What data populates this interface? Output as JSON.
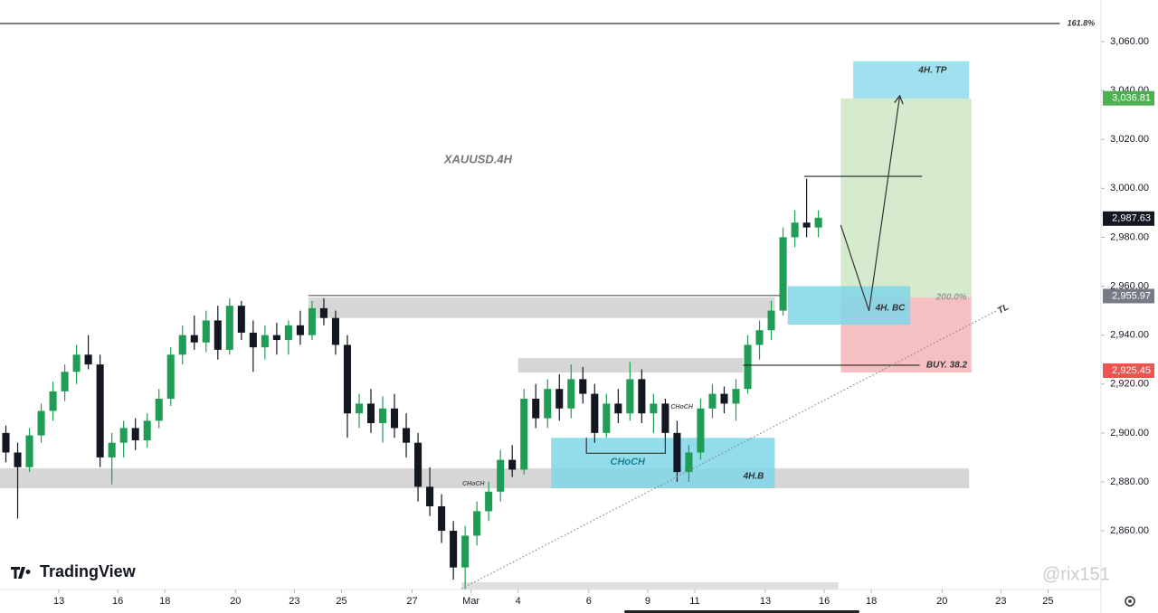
{
  "chart_data": {
    "type": "candlestick",
    "up_color": "#1f9d55",
    "down_color": "#131722",
    "grid": false,
    "xlim": [
      -0.5,
      93
    ],
    "xticks": [
      {
        "value": 4.5,
        "label": "13"
      },
      {
        "value": 9.5,
        "label": "16"
      },
      {
        "value": 13.5,
        "label": "18"
      },
      {
        "value": 19.5,
        "label": "20"
      },
      {
        "value": 24.5,
        "label": "23"
      },
      {
        "value": 28.5,
        "label": "25"
      },
      {
        "value": 34.5,
        "label": "27"
      },
      {
        "value": 39.5,
        "label": "Mar"
      },
      {
        "value": 43.5,
        "label": "4"
      },
      {
        "value": 49.5,
        "label": "6"
      },
      {
        "value": 54.5,
        "label": "9"
      },
      {
        "value": 58.5,
        "label": "11"
      },
      {
        "value": 64.5,
        "label": "13"
      },
      {
        "value": 69.5,
        "label": "16"
      },
      {
        "value": 73.5,
        "label": "18"
      },
      {
        "value": 79.5,
        "label": "20"
      },
      {
        "value": 84.5,
        "label": "23"
      },
      {
        "value": 88.5,
        "label": "25"
      }
    ],
    "ylim": [
      2836,
      3077
    ],
    "yticks": [
      {
        "value": 2860,
        "label": "2,860.00"
      },
      {
        "value": 2880,
        "label": "2,880.00"
      },
      {
        "value": 2900,
        "label": "2,900.00"
      },
      {
        "value": 2920,
        "label": "2,920.00"
      },
      {
        "value": 2940,
        "label": "2,940.00"
      },
      {
        "value": 2960,
        "label": "2,960.00"
      },
      {
        "value": 2980,
        "label": "2,980.00"
      },
      {
        "value": 3000,
        "label": "3,000.00"
      },
      {
        "value": 3020,
        "label": "3,020.00"
      },
      {
        "value": 3040,
        "label": "3,040.00"
      },
      {
        "value": 3060,
        "label": "3,060.00"
      }
    ],
    "open": [
      2900,
      2892,
      2886,
      2899,
      2909,
      2917,
      2925,
      2932,
      2928,
      2890,
      2896,
      2902,
      2897,
      2905,
      2914,
      2932,
      2940,
      2937,
      2946,
      2934,
      2952,
      2941,
      2935,
      2940,
      2938,
      2944,
      2940,
      2951,
      2947,
      2936,
      2908,
      2912,
      2904,
      2910,
      2902,
      2896,
      2878,
      2870,
      2860,
      2845,
      2858,
      2868,
      2876,
      2889,
      2885,
      2914,
      2906,
      2918,
      2910,
      2922,
      2916,
      2900,
      2912,
      2908,
      2922,
      2908,
      2912,
      2900,
      2884,
      2892,
      2910,
      2916,
      2912,
      2918,
      2936,
      2942,
      2950,
      2980,
      2986,
      2984
    ],
    "high": [
      2903,
      2896,
      2902,
      2912,
      2921,
      2928,
      2936,
      2940,
      2932,
      2900,
      2905,
      2906,
      2908,
      2918,
      2935,
      2944,
      2948,
      2950,
      2952,
      2955,
      2954,
      2946,
      2944,
      2945,
      2946,
      2950,
      2954,
      2955,
      2950,
      2940,
      2916,
      2918,
      2915,
      2916,
      2908,
      2900,
      2886,
      2875,
      2864,
      2862,
      2872,
      2880,
      2893,
      2895,
      2918,
      2920,
      2922,
      2924,
      2928,
      2927,
      2920,
      2916,
      2918,
      2929,
      2926,
      2916,
      2914,
      2905,
      2895,
      2914,
      2920,
      2919,
      2922,
      2940,
      2946,
      2954,
      2984,
      2991,
      3004,
      2991
    ],
    "low": [
      2888,
      2865,
      2884,
      2896,
      2905,
      2913,
      2920,
      2926,
      2886,
      2879,
      2890,
      2893,
      2894,
      2902,
      2911,
      2928,
      2934,
      2933,
      2930,
      2932,
      2938,
      2925,
      2930,
      2932,
      2932,
      2936,
      2938,
      2944,
      2932,
      2898,
      2902,
      2900,
      2896,
      2898,
      2890,
      2872,
      2866,
      2855,
      2840,
      2836,
      2854,
      2864,
      2872,
      2882,
      2883,
      2902,
      2902,
      2905,
      2906,
      2912,
      2896,
      2898,
      2904,
      2905,
      2904,
      2900,
      2896,
      2880,
      2880,
      2889,
      2906,
      2908,
      2905,
      2916,
      2930,
      2938,
      2948,
      2976,
      2980,
      2980
    ],
    "close": [
      2892,
      2886,
      2899,
      2909,
      2917,
      2925,
      2932,
      2928,
      2890,
      2896,
      2902,
      2897,
      2905,
      2914,
      2932,
      2940,
      2937,
      2946,
      2934,
      2952,
      2941,
      2935,
      2940,
      2938,
      2944,
      2940,
      2951,
      2947,
      2936,
      2908,
      2912,
      2904,
      2910,
      2902,
      2896,
      2878,
      2870,
      2860,
      2845,
      2858,
      2868,
      2876,
      2889,
      2885,
      2914,
      2906,
      2918,
      2910,
      2922,
      2916,
      2900,
      2912,
      2908,
      2922,
      2908,
      2912,
      2900,
      2884,
      2892,
      2910,
      2916,
      2912,
      2918,
      2936,
      2942,
      2950,
      2980,
      2986,
      2984,
      2988
    ],
    "zones": [
      {
        "x": [
          70.9,
          82
        ],
        "y": [
          2955.4,
          3036.7
        ],
        "color": "#cfe8c6"
      },
      {
        "x": [
          70.9,
          82
        ],
        "y": [
          2924.7,
          2955.4
        ],
        "color": "#f5b5b8"
      },
      {
        "x": [
          71.96,
          81.8
        ],
        "y": [
          3036.7,
          3052
        ],
        "color": "#8fdcec"
      },
      {
        "x": [
          25.7,
          65.3
        ],
        "y": [
          2947,
          2955.4
        ],
        "color": "#cfcfcf"
      },
      {
        "x": [
          43.5,
          62.6
        ],
        "y": [
          2924.7,
          2930.6
        ],
        "color": "#cfcfcf"
      },
      {
        "x": [
          -0.5,
          81.8
        ],
        "y": [
          2877.4,
          2885.5
        ],
        "color": "#cfcfcf"
      },
      {
        "x": [
          38.7,
          70.7
        ],
        "y": [
          2836,
          2839
        ],
        "color": "#d9d9d9"
      },
      {
        "x": [
          46.3,
          65.3
        ],
        "y": [
          2877.4,
          2898
        ],
        "color": "#7fd6e8"
      },
      {
        "x": [
          66.4,
          76.8
        ],
        "y": [
          2944.3,
          2960
        ],
        "color": "#7fd6e8"
      }
    ],
    "lines": [
      {
        "x": [
          -0.5,
          89.5
        ],
        "y": [
          3067.4,
          3067.4
        ],
        "style": "solid",
        "color": "#333333"
      },
      {
        "x": [
          25.7,
          65.8
        ],
        "y": [
          2956.2,
          2956.2
        ],
        "style": "solid",
        "color": "#555555"
      },
      {
        "x": [
          67.8,
          77.8
        ],
        "y": [
          3004.9,
          3004.9
        ],
        "style": "solid",
        "color": "#222222"
      },
      {
        "x": [
          62.6,
          77.6
        ],
        "y": [
          2927.7,
          2927.7
        ],
        "style": "solid",
        "color": "#222222"
      },
      {
        "x": [
          49.3,
          49.3,
          56.0,
          56.0
        ],
        "y": [
          2898,
          2891.7,
          2891.7,
          2898
        ],
        "style": "solid",
        "color": "#333333"
      },
      {
        "x": [
          38.7,
          84.1
        ],
        "y": [
          2836.3,
          2949.9
        ],
        "style": "dotted",
        "color": "#888888"
      },
      {
        "x": [
          70.9,
          73.3,
          75.9
        ],
        "y": [
          2985,
          2949.9,
          3037.5
        ],
        "style": "arrow",
        "color": "#333333"
      }
    ],
    "annotations": [
      {
        "text": "XAUUSD.4H",
        "x": 40.1,
        "y": 3011.6,
        "size": 13,
        "color": "#777777"
      },
      {
        "text": "4H. TP",
        "x": 78.7,
        "y": 3048.2,
        "size": 10,
        "color": "#333333"
      },
      {
        "text": "4H. BC",
        "x": 75.1,
        "y": 2951,
        "size": 10,
        "color": "#333333"
      },
      {
        "text": "200.0%",
        "x": 80.3,
        "y": 2955.4,
        "size": 10,
        "color": "#999999"
      },
      {
        "text": "BUY. 38.2",
        "x": 79.9,
        "y": 2927.7,
        "size": 10,
        "color": "#333333"
      },
      {
        "text": "CHoCH",
        "x": 52.8,
        "y": 2888.1,
        "size": 11,
        "color": "#1b7f95"
      },
      {
        "text": "CHoCH",
        "x": 39.7,
        "y": 2879.2,
        "size": 7,
        "color": "#555555"
      },
      {
        "text": "CHoCH",
        "x": 57.4,
        "y": 2910.6,
        "size": 7,
        "color": "#555555"
      },
      {
        "text": "4H.B",
        "x": 63.5,
        "y": 2882.2,
        "size": 10,
        "color": "#333333"
      },
      {
        "text": "TL",
        "x": 84.7,
        "y": 2950.6,
        "size": 10,
        "color": "#333333"
      },
      {
        "text": "161.8%",
        "x": 91.3,
        "y": 3067.4,
        "size": 9,
        "color": "#333333"
      }
    ],
    "price_labels": [
      {
        "value": 3036.81,
        "label": "3,036.81",
        "color": "#4caf50"
      },
      {
        "value": 2987.63,
        "label": "2,987.63",
        "color": "#131722"
      },
      {
        "value": 2955.97,
        "label": "2,955.97",
        "color": "#787b86"
      },
      {
        "value": 2925.45,
        "label": "2,925.45",
        "color": "#ef5350"
      }
    ],
    "logo": "TradingView",
    "watermark": "@rix151"
  }
}
